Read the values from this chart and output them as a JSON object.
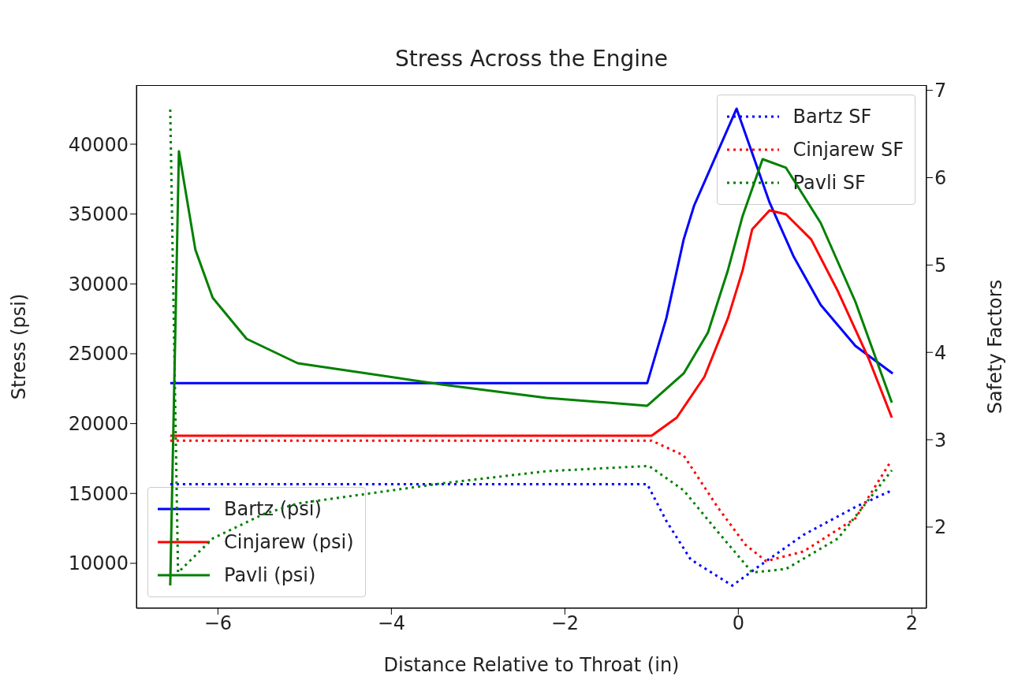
{
  "chart_data": {
    "type": "line",
    "title": "Stress Across the Engine",
    "xlabel": "Distance Relative to Throat (in)",
    "ylabel": "Stress (psi)",
    "y2label": "Safety Factors",
    "xlim": [
      -6.94,
      2.17
    ],
    "xticks": [
      {
        "value": -6,
        "label": "−6"
      },
      {
        "value": -4,
        "label": "−4"
      },
      {
        "value": -2,
        "label": "−2"
      },
      {
        "value": 0,
        "label": "0"
      },
      {
        "value": 2,
        "label": "2"
      }
    ],
    "ylim": [
      6780,
      44230
    ],
    "yticks": [
      10000,
      15000,
      20000,
      25000,
      30000,
      35000,
      40000
    ],
    "y2lim": [
      1.07,
      7.06
    ],
    "y2ticks": [
      2,
      3,
      4,
      5,
      6,
      7
    ],
    "grid": false,
    "legend": "bottom left",
    "marker": "none",
    "series": [
      {
        "name": "Bartz (psi)",
        "color": "#0000ff",
        "line_style": "solid",
        "x": [
          -6.55,
          -1.05,
          -0.83,
          -0.63,
          -0.51,
          -0.02,
          0.36,
          0.64,
          0.95,
          1.35,
          1.78
        ],
        "values": [
          22900,
          22900,
          27540,
          33180,
          35600,
          42540,
          35830,
          31930,
          28490,
          25560,
          23590
        ]
      },
      {
        "name": "Cinjarew (psi)",
        "color": "#ff0000",
        "line_style": "solid",
        "x": [
          -6.55,
          -1.0,
          -0.71,
          -0.39,
          -0.12,
          0.05,
          0.16,
          0.36,
          0.55,
          0.84,
          1.15,
          1.51,
          1.77
        ],
        "values": [
          19130,
          19130,
          20430,
          23360,
          27540,
          30980,
          33910,
          35260,
          34980,
          33180,
          29450,
          24550,
          20430
        ]
      },
      {
        "name": "Pavli (psi)",
        "color": "#008000",
        "line_style": "solid",
        "x": [
          -6.55,
          -6.45,
          -6.26,
          -6.06,
          -5.67,
          -5.08,
          -3.42,
          -2.21,
          -1.05,
          -0.63,
          -0.35,
          -0.12,
          0.05,
          0.28,
          0.55,
          0.95,
          1.35,
          1.77
        ],
        "values": [
          8420,
          39490,
          32440,
          29000,
          26070,
          24320,
          22800,
          21840,
          21280,
          23590,
          26520,
          30980,
          34870,
          38930,
          38310,
          34360,
          28720,
          21500
        ]
      },
      {
        "name": "Bartz SF",
        "color": "#0000ff",
        "line_style": "dotted",
        "axis": "y2",
        "x": [
          -6.55,
          -1.05,
          -0.83,
          -0.55,
          -0.07,
          0.25,
          0.75,
          1.35,
          1.77
        ],
        "values": [
          2.49,
          2.49,
          2.07,
          1.63,
          1.33,
          1.56,
          1.91,
          2.23,
          2.42
        ]
      },
      {
        "name": "Cinjarew SF",
        "color": "#ff0000",
        "line_style": "dotted",
        "axis": "y2",
        "x": [
          -6.55,
          -1.0,
          -0.63,
          -0.24,
          0.08,
          0.32,
          0.75,
          1.35,
          1.75
        ],
        "values": [
          2.99,
          2.99,
          2.82,
          2.23,
          1.8,
          1.61,
          1.72,
          2.1,
          2.74
        ]
      },
      {
        "name": "Pavli SF",
        "color": "#008000",
        "line_style": "dotted",
        "axis": "y2",
        "x": [
          -6.55,
          -6.46,
          -6.06,
          -5.47,
          -5.08,
          -3.42,
          -2.21,
          -1.03,
          -0.63,
          -0.24,
          0.16,
          0.55,
          1.15,
          1.77
        ],
        "values": [
          6.78,
          1.48,
          1.87,
          2.15,
          2.27,
          2.5,
          2.64,
          2.7,
          2.42,
          1.95,
          1.48,
          1.52,
          1.87,
          2.65
        ]
      }
    ]
  }
}
